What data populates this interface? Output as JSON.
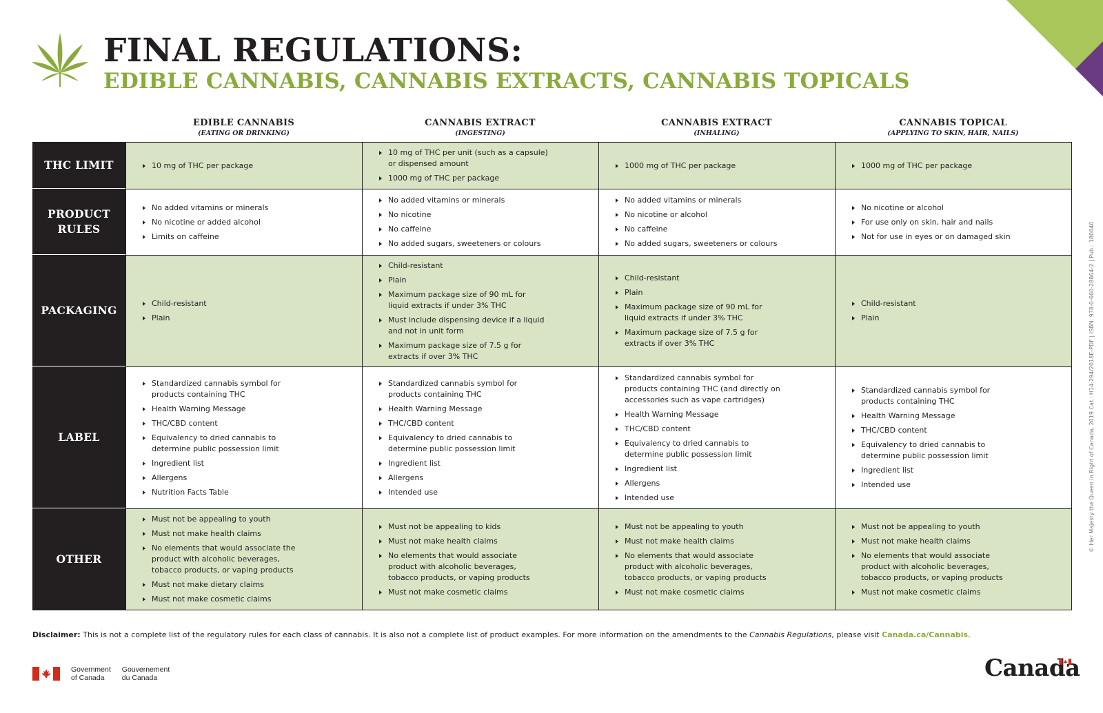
{
  "header": {
    "title": "FINAL REGULATIONS:",
    "subtitle": "EDIBLE CANNABIS, CANNABIS EXTRACTS, CANNABIS TOPICALS"
  },
  "colors": {
    "green": "#8aab3c",
    "shade": "#d8e4c4",
    "dark": "#231f20",
    "purple": "#6a3a82"
  },
  "columns": [
    {
      "title": "EDIBLE CANNABIS",
      "sub": "(EATING OR DRINKING)"
    },
    {
      "title": "CANNABIS EXTRACT",
      "sub": "(INGESTING)"
    },
    {
      "title": "CANNABIS EXTRACT",
      "sub": "(INHALING)"
    },
    {
      "title": "CANNABIS TOPICAL",
      "sub": "(APPLYING TO SKIN, HAIR, NAILS)"
    }
  ],
  "rows": [
    {
      "label": "THC LIMIT",
      "cells": [
        [
          "10 mg of THC per package"
        ],
        [
          "10 mg of THC per unit (such as a capsule) or dispensed amount",
          "1000 mg of THC per package"
        ],
        [
          "1000 mg of THC per package"
        ],
        [
          "1000 mg of THC per package"
        ]
      ]
    },
    {
      "label": "PRODUCT\nRULES",
      "cells": [
        [
          "No added vitamins or minerals",
          "No nicotine or added alcohol",
          "Limits on caffeine"
        ],
        [
          "No added vitamins or minerals",
          "No nicotine",
          "No caffeine",
          "No added sugars, sweeteners or colours"
        ],
        [
          "No added vitamins or minerals",
          "No nicotine or alcohol",
          "No caffeine",
          "No added sugars, sweeteners or colours"
        ],
        [
          "No nicotine or alcohol",
          "For use only on skin, hair and nails",
          "Not for use in eyes or on damaged skin"
        ]
      ]
    },
    {
      "label": "PACKAGING",
      "cells": [
        [
          "Child-resistant",
          "Plain"
        ],
        [
          "Child-resistant",
          "Plain",
          "Maximum package size of 90 mL for liquid extracts if under 3% THC",
          "Must include dispensing device if a liquid and not in unit form",
          "Maximum package size of 7.5 g for extracts if over 3% THC"
        ],
        [
          "Child-resistant",
          "Plain",
          "Maximum package size of 90 mL for liquid extracts if under 3% THC",
          "Maximum package size of 7.5 g for extracts if over 3% THC"
        ],
        [
          "Child-resistant",
          "Plain"
        ]
      ]
    },
    {
      "label": "LABEL",
      "cells": [
        [
          "Standardized cannabis symbol for products containing THC",
          "Health Warning Message",
          "THC/CBD content",
          "Equivalency to dried cannabis to determine public possession limit",
          "Ingredient list",
          "Allergens",
          "Nutrition Facts Table"
        ],
        [
          "Standardized cannabis symbol for products containing THC",
          "Health Warning Message",
          "THC/CBD content",
          "Equivalency to dried cannabis to determine public possession limit",
          "Ingredient list",
          "Allergens",
          "Intended use"
        ],
        [
          "Standardized cannabis symbol for products containing THC (and directly on accessories such as vape cartridges)",
          "Health Warning Message",
          "THC/CBD content",
          "Equivalency to dried cannabis to determine public possession limit",
          "Ingredient list",
          "Allergens",
          "Intended use"
        ],
        [
          "Standardized cannabis symbol for products containing THC",
          "Health Warning Message",
          "THC/CBD content",
          "Equivalency to dried cannabis to determine public possession limit",
          "Ingredient list",
          "Intended use"
        ]
      ]
    },
    {
      "label": "OTHER",
      "cells": [
        [
          "Must not be appealing to youth",
          "Must not make health claims",
          "No elements that would associate the product with alcoholic beverages, tobacco products, or vaping products",
          "Must not make dietary claims",
          "Must not make cosmetic claims"
        ],
        [
          "Must not be appealing to kids",
          "Must not make health claims",
          "No elements that would associate product with alcoholic beverages, tobacco products, or vaping products",
          "Must not make cosmetic claims"
        ],
        [
          "Must not be appealing to youth",
          "Must not make health claims",
          "No elements that would associate product with alcoholic beverages, tobacco products, or vaping products",
          "Must not make cosmetic claims"
        ],
        [
          "Must not be appealing to youth",
          "Must not make health claims",
          "No elements that would associate product with alcoholic beverages, tobacco products, or vaping products",
          "Must not make cosmetic claims"
        ]
      ]
    }
  ],
  "disclaimer": {
    "label": "Disclaimer:",
    "text1": " This is not a complete list of the regulatory rules for each class of cannabis. It is also not a complete list of product examples. For more information on the amendments to the ",
    "italic": "Cannabis Regulations",
    "text2": ", please visit ",
    "link": "Canada.ca/Cannabis",
    "end": "."
  },
  "side_note": "© Her Majesty the Queen in Right of Canada, 2019    Cat.: H14-294/2018E-PDF  |  ISBN: 978-0-660-28864-2  |  Pub.: 180640",
  "footer": {
    "gov_en": "Government\nof Canada",
    "gov_fr": "Gouvernement\ndu Canada",
    "wordmark": "Canada"
  }
}
